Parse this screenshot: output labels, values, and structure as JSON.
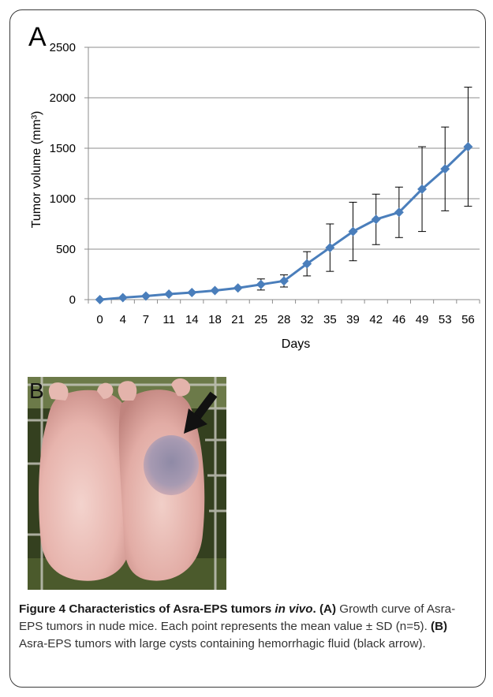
{
  "panel_a_label": "A",
  "panel_b_label": "B",
  "chart_data": {
    "type": "line",
    "xlabel": "Days",
    "ylabel": "Tumor volume (mm³)",
    "ylim": [
      0,
      2500
    ],
    "yticks": [
      0,
      500,
      1000,
      1500,
      2000,
      2500
    ],
    "grid": "horizontal",
    "categories": [
      "0",
      "4",
      "7",
      "11",
      "14",
      "18",
      "21",
      "25",
      "28",
      "32",
      "35",
      "39",
      "42",
      "46",
      "49",
      "53",
      "56"
    ],
    "series": [
      {
        "values": [
          0,
          20,
          35,
          55,
          70,
          90,
          115,
          150,
          185,
          355,
          515,
          675,
          795,
          865,
          1095,
          1295,
          1515
        ],
        "error": [
          0,
          0,
          0,
          0,
          0,
          0,
          0,
          55,
          60,
          120,
          235,
          290,
          250,
          250,
          420,
          415,
          590
        ],
        "color": "#4a7ebb"
      }
    ]
  },
  "photo": {
    "description_icon": "nude-mice-photo",
    "arrow_icon": "black-arrow-icon"
  },
  "caption": {
    "figure_label": "Figure 4",
    "title_part1": "Characteristics of Asra-EPS tumors ",
    "title_italic": "in vivo",
    "title_end": ".",
    "a_label": "(A)",
    "a_text": " Growth curve of Asra-EPS tumors in nude mice. Each point represents the mean value ± SD (n=5). ",
    "b_label": "(B)",
    "b_text": " Asra-EPS tumors with large cysts containing hemorrhagic fluid (black arrow)."
  }
}
